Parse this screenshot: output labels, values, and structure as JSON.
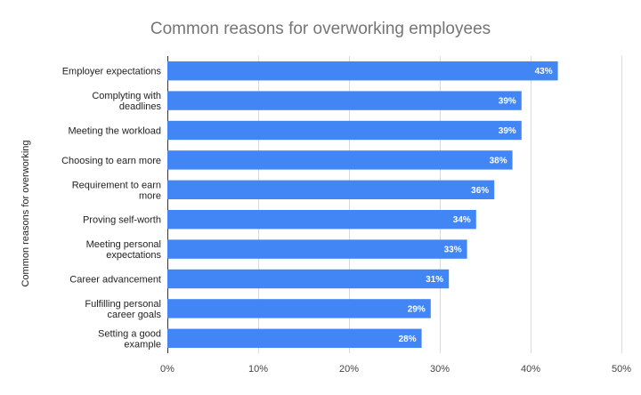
{
  "chart_data": {
    "type": "bar",
    "orientation": "horizontal",
    "title": "Common reasons for overworking employees",
    "xlabel": "",
    "ylabel": "Common reasons for overworking",
    "categories": [
      [
        "Employer expectations"
      ],
      [
        "Complyting with",
        "deadlines"
      ],
      [
        "Meeting the workload"
      ],
      [
        "Choosing to earn more"
      ],
      [
        "Requirement to earn",
        "more"
      ],
      [
        "Proving self-worth"
      ],
      [
        "Meeting personal",
        "expectations"
      ],
      [
        "Career advancement"
      ],
      [
        "Fulfilling personal",
        "career goals"
      ],
      [
        "Setting a good",
        "example"
      ]
    ],
    "values": [
      43,
      39,
      39,
      38,
      36,
      34,
      33,
      31,
      29,
      28
    ],
    "data_labels": [
      "43%",
      "39%",
      "39%",
      "38%",
      "36%",
      "34%",
      "33%",
      "31%",
      "29%",
      "28%"
    ],
    "xlim": [
      0,
      50
    ],
    "xticks": [
      0,
      10,
      20,
      30,
      40,
      50
    ],
    "xtick_labels": [
      "0%",
      "10%",
      "20%",
      "30%",
      "40%",
      "50%"
    ],
    "bar_color": "#4285f4",
    "grid": true,
    "legend": "none"
  }
}
